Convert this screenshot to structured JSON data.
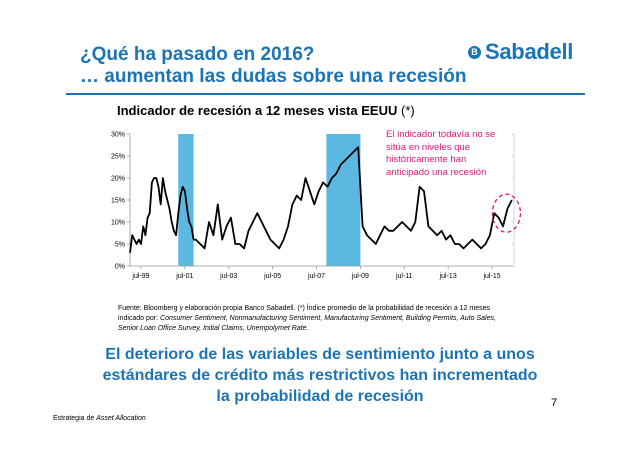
{
  "slide": {
    "title_line1": "¿Qué ha pasado en 2016?",
    "title_line2": "… aumentan las dudas sobre una recesión",
    "logo_text": "Sabadell",
    "chart_title": "Indicador de recesión a 12 meses vista EEUU",
    "chart_title_suffix": "(*)",
    "annotation": "El indicador todavía no se sitúa en niveles que históricamente han anticipado una recesión",
    "source_prefix": "Fuente: Bloomberg y elaboración propia Banco Sabadell. (*) Índice promedio de la probabilidad de recesión a 12 meses indicado por: ",
    "source_italic": "Consumer Sentiment, Nonmanufacturing Sentiment, Manufacturing Sentiment, Building Permits, Auto Sales, Senior Loan Office Survey, Initial Claims, Unempolymet Rate.",
    "conclusion": "El deterioro de las variables de sentimiento junto a unos estándares de crédito más restrictivos han incrementado la probabilidad de recesión",
    "page_number": "7",
    "footer_prefix": "Estrategia de ",
    "footer_italic": "Asset Allocation",
    "colors": {
      "brand_blue": "#1a74b5",
      "recession_band": "#5bb8e0",
      "annotation": "#d6197a"
    }
  },
  "chart_data": {
    "type": "line",
    "title": "Indicador de recesión a 12 meses vista EEUU (*)",
    "xlabel": "",
    "ylabel": "",
    "x_range": [
      1999.0,
      2016.5
    ],
    "ylim": [
      0,
      30
    ],
    "y_ticks": [
      0,
      5,
      10,
      15,
      20,
      25,
      30
    ],
    "y_tick_labels": [
      "0%",
      "5%",
      "10%",
      "15%",
      "20%",
      "25%",
      "30%"
    ],
    "x_ticks": [
      1999.5,
      2001.5,
      2003.5,
      2005.5,
      2007.5,
      2009.5,
      2011.5,
      2013.5,
      2015.5
    ],
    "x_tick_labels": [
      "jul-99",
      "jul-01",
      "jul-03",
      "jul-05",
      "jul-07",
      "jul-09",
      "jul-11",
      "jul-13",
      "jul-15"
    ],
    "recession_bands": [
      [
        2001.2,
        2001.9
      ],
      [
        2007.95,
        2009.5
      ]
    ],
    "highlight_circle_x": 2016.2,
    "grid": false,
    "series": [
      {
        "x": [
          1999.0,
          1999.1,
          1999.2,
          1999.3,
          1999.4,
          1999.5,
          1999.6,
          1999.7,
          1999.8,
          1999.9,
          2000.0,
          2000.1,
          2000.2,
          2000.3,
          2000.4,
          2000.5,
          2000.6,
          2000.7,
          2000.8,
          2000.9,
          2001.0,
          2001.1,
          2001.2,
          2001.3,
          2001.4,
          2001.5,
          2001.6,
          2001.7,
          2001.8,
          2001.9,
          2002.0,
          2002.2,
          2002.4,
          2002.6,
          2002.8,
          2003.0,
          2003.2,
          2003.4,
          2003.6,
          2003.8,
          2004.0,
          2004.2,
          2004.4,
          2004.6,
          2004.8,
          2005.0,
          2005.2,
          2005.4,
          2005.6,
          2005.8,
          2006.0,
          2006.2,
          2006.4,
          2006.6,
          2006.8,
          2007.0,
          2007.2,
          2007.4,
          2007.6,
          2007.8,
          2008.0,
          2008.2,
          2008.4,
          2008.6,
          2008.8,
          2009.0,
          2009.2,
          2009.4,
          2009.6,
          2009.8,
          2010.0,
          2010.2,
          2010.4,
          2010.6,
          2010.8,
          2011.0,
          2011.2,
          2011.4,
          2011.6,
          2011.8,
          2012.0,
          2012.2,
          2012.4,
          2012.6,
          2012.8,
          2013.0,
          2013.2,
          2013.4,
          2013.6,
          2013.8,
          2014.0,
          2014.2,
          2014.4,
          2014.6,
          2014.8,
          2015.0,
          2015.2,
          2015.4,
          2015.6,
          2015.8,
          2016.0,
          2016.2,
          2016.4
        ],
        "y": [
          3,
          7,
          6,
          5,
          6,
          5,
          9,
          7,
          11,
          12,
          19,
          20,
          20,
          18,
          14,
          20,
          17,
          15,
          13,
          10,
          8,
          7,
          12,
          16,
          18,
          17,
          13,
          10,
          9,
          6,
          6,
          5,
          4,
          10,
          7,
          14,
          6,
          9,
          11,
          5,
          5,
          4,
          8,
          10,
          12,
          10,
          8,
          6,
          5,
          4,
          6,
          9,
          14,
          16,
          15,
          20,
          17,
          14,
          17,
          19,
          18,
          20,
          21,
          23,
          24,
          25,
          26,
          27,
          9,
          7,
          6,
          5,
          7,
          9,
          8,
          8,
          9,
          10,
          9,
          8,
          10,
          18,
          17,
          9,
          8,
          7,
          8,
          6,
          7,
          5,
          5,
          4,
          5,
          6,
          5,
          4,
          5,
          7,
          12,
          11,
          9,
          13,
          15
        ]
      }
    ]
  }
}
